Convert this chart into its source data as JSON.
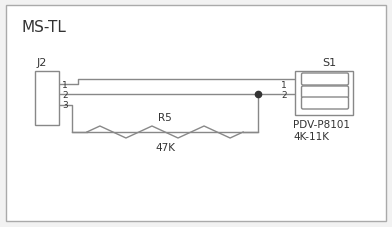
{
  "title": "MS-TL",
  "j2_label": "J2",
  "s1_label": "S1",
  "r5_label": "R5",
  "r5_value": "47K",
  "pdv_label": "PDV-P8101",
  "pdv_value": "4K-11K",
  "bg_color": "#f2f2f2",
  "line_color": "#888888",
  "border_color": "#aaaaaa",
  "text_color": "#333333",
  "dot_color": "#333333",
  "title_fontsize": 11,
  "label_fontsize": 8,
  "pin_fontsize": 6.5
}
